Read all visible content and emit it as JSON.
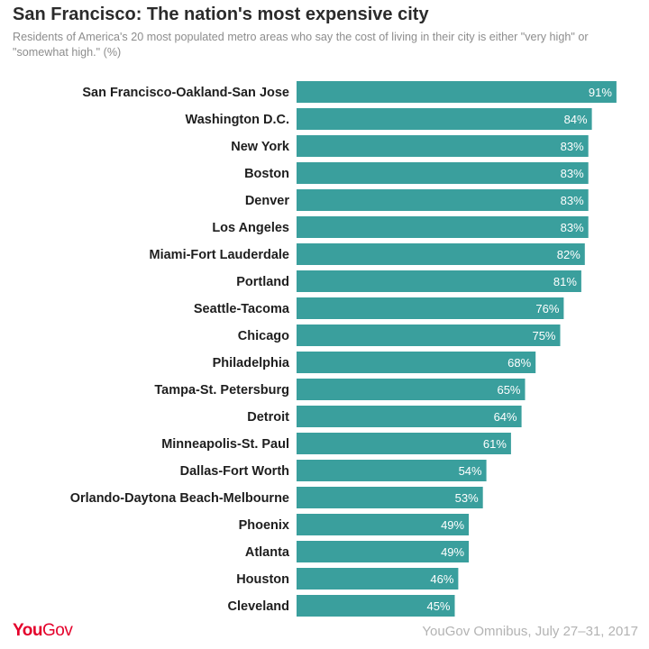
{
  "title": "San Francisco: The nation's most expensive city",
  "subtitle": "Residents of America's 20 most populated metro areas who say the cost of living in their city is either \"very high\" or \"somewhat high.\" (%)",
  "footer": {
    "brand_you": "You",
    "brand_gov": "Gov",
    "source": "YouGov Omnibus, July 27–31, 2017"
  },
  "colors": {
    "bar": "#3a9f9d",
    "brand": "#e4002b"
  },
  "chart_data": {
    "type": "bar",
    "orientation": "horizontal",
    "title": "San Francisco: The nation's most expensive city",
    "subtitle": "Residents of America's 20 most populated metro areas who say the cost of living in their city is either \"very high\" or \"somewhat high.\" (%)",
    "xlabel": "",
    "ylabel": "",
    "xlim": [
      0,
      100
    ],
    "grid": false,
    "value_suffix": "%",
    "categories": [
      "San Francisco-Oakland-San Jose",
      "Washington D.C.",
      "New York",
      "Boston",
      "Denver",
      "Los Angeles",
      "Miami-Fort Lauderdale",
      "Portland",
      "Seattle-Tacoma",
      "Chicago",
      "Philadelphia",
      "Tampa-St. Petersburg",
      "Detroit",
      "Minneapolis-St. Paul",
      "Dallas-Fort Worth",
      "Orlando-Daytona Beach-Melbourne",
      "Phoenix",
      "Atlanta",
      "Houston",
      "Cleveland"
    ],
    "values": [
      91,
      84,
      83,
      83,
      83,
      83,
      82,
      81,
      76,
      75,
      68,
      65,
      64,
      61,
      54,
      53,
      49,
      49,
      46,
      45
    ]
  }
}
